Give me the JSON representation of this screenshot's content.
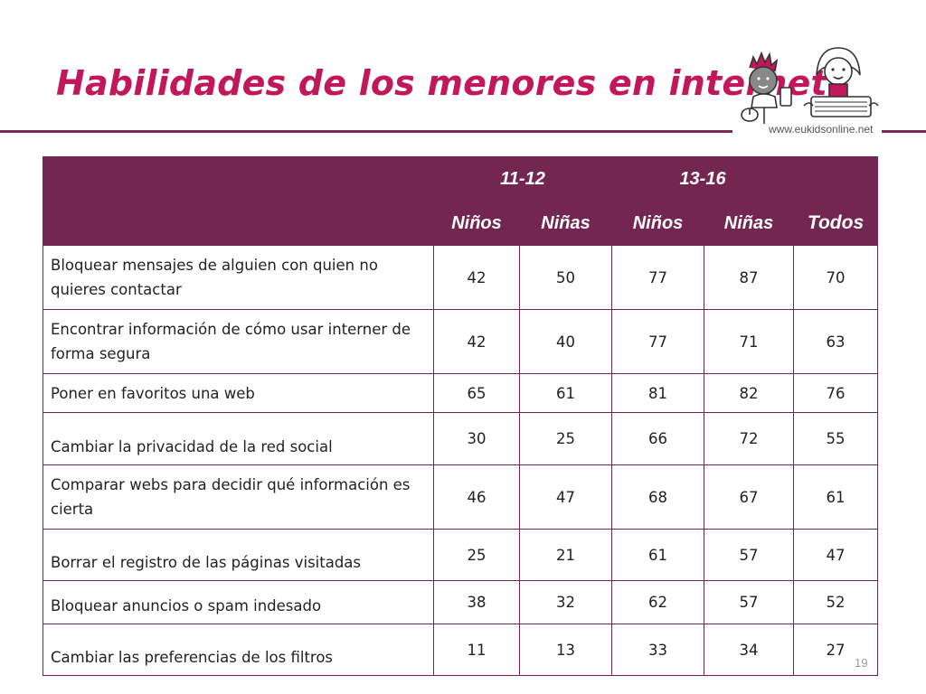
{
  "title": "Habilidades de los menores en internet",
  "logo_url": "www.eukidsonline.net",
  "page_number": "19",
  "table": {
    "age_groups": [
      "11-12",
      "13-16"
    ],
    "subheaders": [
      "Niños",
      "Niñas",
      "Niños",
      "Niñas",
      "Todos"
    ],
    "rows": [
      {
        "label": "Bloquear mensajes de alguien con quien no quieres contactar",
        "values": [
          "42",
          "50",
          "77",
          "87",
          "70"
        ]
      },
      {
        "label": "Encontrar información de cómo usar interner de forma segura",
        "values": [
          "42",
          "40",
          "77",
          "71",
          "63"
        ]
      },
      {
        "label": "Poner en favoritos una web",
        "values": [
          "65",
          "61",
          "81",
          "82",
          "76"
        ]
      },
      {
        "label": "Cambiar la privacidad de la red social",
        "values": [
          "30",
          "25",
          "66",
          "72",
          "55"
        ]
      },
      {
        "label": "Comparar webs para decidir qué información es cierta",
        "values": [
          "46",
          "47",
          "68",
          "67",
          "61"
        ]
      },
      {
        "label": "Borrar el registro de las páginas visitadas",
        "values": [
          "25",
          "21",
          "61",
          "57",
          "47"
        ]
      },
      {
        "label": "Bloquear anuncios o spam indesado",
        "values": [
          "38",
          "32",
          "62",
          "57",
          "52"
        ]
      },
      {
        "label": "Cambiar las preferencias de los filtros",
        "values": [
          "11",
          "13",
          "33",
          "34",
          "27"
        ]
      }
    ]
  },
  "colors": {
    "title": "#c2185b",
    "header_bg": "#722650",
    "border": "#6e2650"
  }
}
